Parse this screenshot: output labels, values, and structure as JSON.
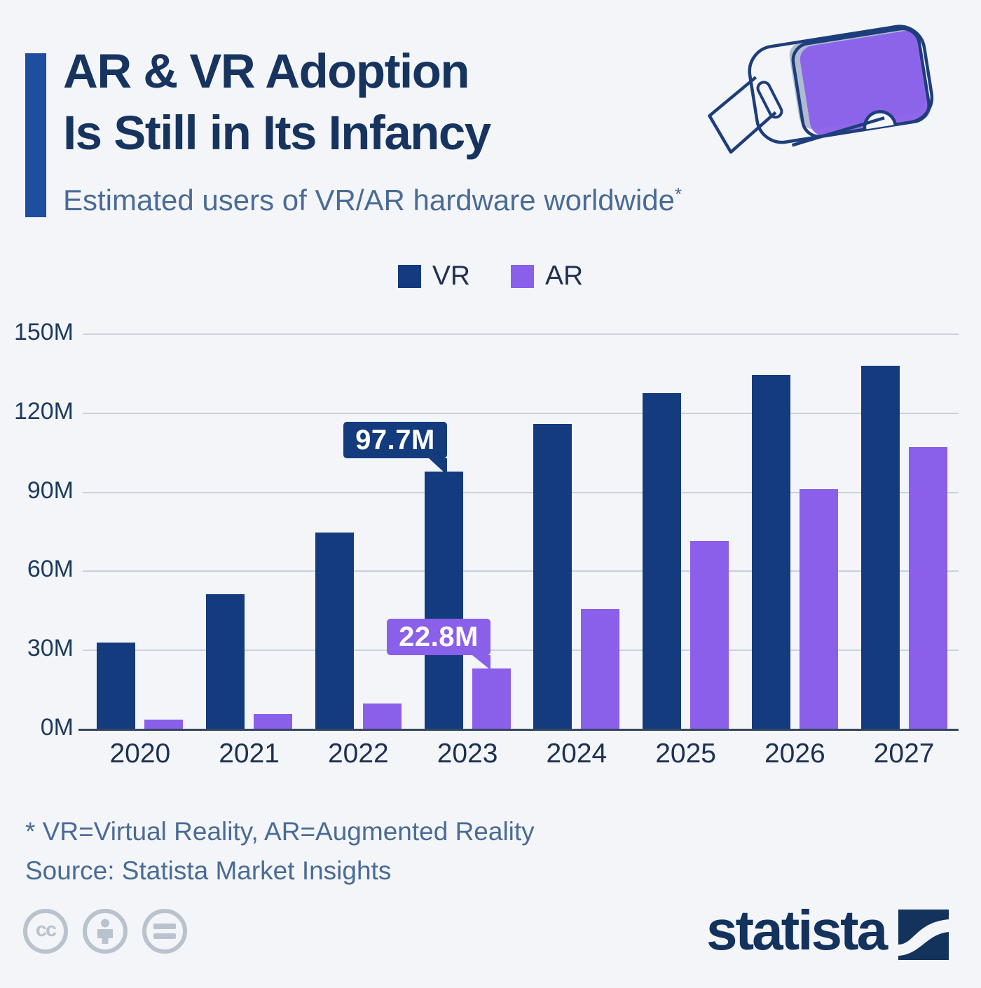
{
  "header": {
    "title_line1": "AR & VR Adoption",
    "title_line2": "Is Still in Its Infancy",
    "subtitle": "Estimated users of VR/AR hardware worldwide",
    "subtitle_note_marker": "*"
  },
  "legend": [
    {
      "label": "VR",
      "color": "#133b7e"
    },
    {
      "label": "AR",
      "color": "#8a5fea"
    }
  ],
  "chart_data": {
    "type": "bar",
    "title": "Estimated users of VR/AR hardware worldwide",
    "categories": [
      "2020",
      "2021",
      "2022",
      "2023",
      "2024",
      "2025",
      "2026",
      "2027"
    ],
    "series": [
      {
        "name": "VR",
        "color": "#133b7e",
        "values": [
          32.6,
          51.0,
          74.4,
          97.7,
          115.8,
          127.4,
          134.2,
          137.9
        ]
      },
      {
        "name": "AR",
        "color": "#8a5fea",
        "values": [
          3.5,
          5.5,
          9.7,
          22.8,
          45.6,
          71.2,
          90.9,
          107.0
        ]
      }
    ],
    "unit": "M",
    "ylim": [
      0,
      150
    ],
    "yticks": [
      "150M",
      "120M",
      "90M",
      "60M",
      "30M",
      "0M"
    ],
    "grid": true,
    "legend_position": "top",
    "callouts": [
      {
        "series": "VR",
        "category": "2023",
        "label": "97.7M"
      },
      {
        "series": "AR",
        "category": "2023",
        "label": "22.8M"
      }
    ]
  },
  "footer": {
    "footnote": "* VR=Virtual Reality, AR=Augmented Reality",
    "source": "Source: Statista Market Insights"
  },
  "branding": {
    "logo_text": "statista",
    "license_icons": [
      "cc-icon",
      "attribution-person-icon",
      "equals-icon"
    ]
  },
  "colors": {
    "vr": "#133b7e",
    "ar": "#8a5fea",
    "accent_bar": "#1d4f9e",
    "background": "#f3f5f9",
    "gridline": "#c9d0db",
    "axis_line": "#35485f",
    "license_gray": "#b9c2cd",
    "logo_navy": "#13325c"
  }
}
